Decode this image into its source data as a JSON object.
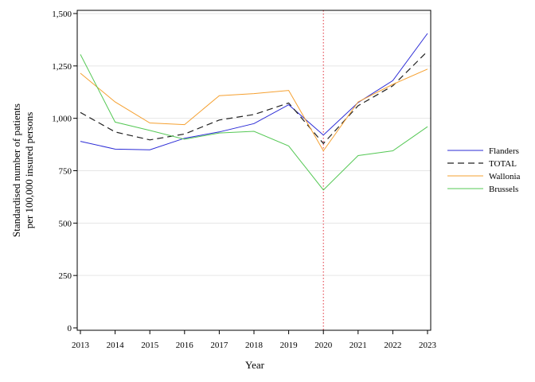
{
  "chart_data": {
    "type": "line",
    "title": "",
    "xlabel": "Year",
    "ylabel_lines": [
      "Standardised number of patients",
      "per 100,000 insured persons"
    ],
    "x": [
      2013,
      2014,
      2015,
      2016,
      2017,
      2018,
      2019,
      2020,
      2021,
      2022,
      2023
    ],
    "x_tick_labels": [
      "2013",
      "2014",
      "2015",
      "2016",
      "2017",
      "2018",
      "2019",
      "2020",
      "2021",
      "2022",
      "2023"
    ],
    "xlim": [
      2013,
      2023
    ],
    "ylim": [
      0,
      1500
    ],
    "y_ticks": [
      0,
      250,
      500,
      750,
      1000,
      1250,
      1500
    ],
    "y_tick_labels": [
      "0",
      "250",
      "500",
      "750",
      "1,000",
      "1,250",
      "1,500"
    ],
    "grid": "horizontal",
    "reference_line": {
      "x": 2020,
      "color": "#e0303a",
      "style": "dotted"
    },
    "legend": {
      "placement": "right"
    },
    "series": [
      {
        "name": "Flanders",
        "color": "#2b2bd6",
        "dash": "solid",
        "values": [
          890,
          853,
          850,
          905,
          935,
          975,
          1065,
          920,
          1075,
          1180,
          1405
        ]
      },
      {
        "name": "TOTAL",
        "color": "#222222",
        "dash": "dashed",
        "values": [
          1028,
          935,
          897,
          925,
          992,
          1018,
          1073,
          880,
          1060,
          1155,
          1320
        ]
      },
      {
        "name": "Wallonia",
        "color": "#f5a030",
        "dash": "solid",
        "values": [
          1215,
          1078,
          978,
          970,
          1108,
          1118,
          1133,
          845,
          1078,
          1162,
          1235
        ]
      },
      {
        "name": "Brussels",
        "color": "#55c855",
        "dash": "solid",
        "values": [
          1305,
          982,
          942,
          900,
          930,
          938,
          868,
          658,
          822,
          845,
          960
        ]
      }
    ]
  }
}
